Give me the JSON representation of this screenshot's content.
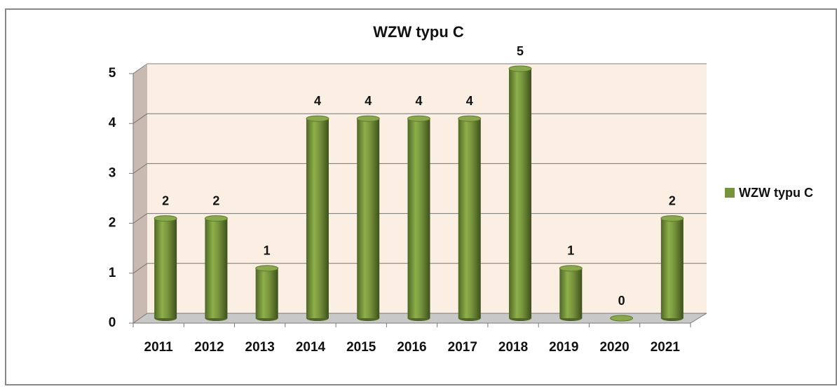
{
  "chart_data": {
    "type": "bar",
    "title": "WZW typu C",
    "categories": [
      "2011",
      "2012",
      "2013",
      "2014",
      "2015",
      "2016",
      "2017",
      "2018",
      "2019",
      "2020",
      "2021"
    ],
    "series": [
      {
        "name": "WZW typu C",
        "color": "#77933c",
        "values": [
          2,
          2,
          1,
          4,
          4,
          4,
          4,
          5,
          1,
          0,
          2
        ]
      }
    ],
    "ylim": [
      0,
      5
    ],
    "yticks": [
      0,
      1,
      2,
      3,
      4,
      5
    ],
    "grid": true,
    "legend": "right"
  }
}
